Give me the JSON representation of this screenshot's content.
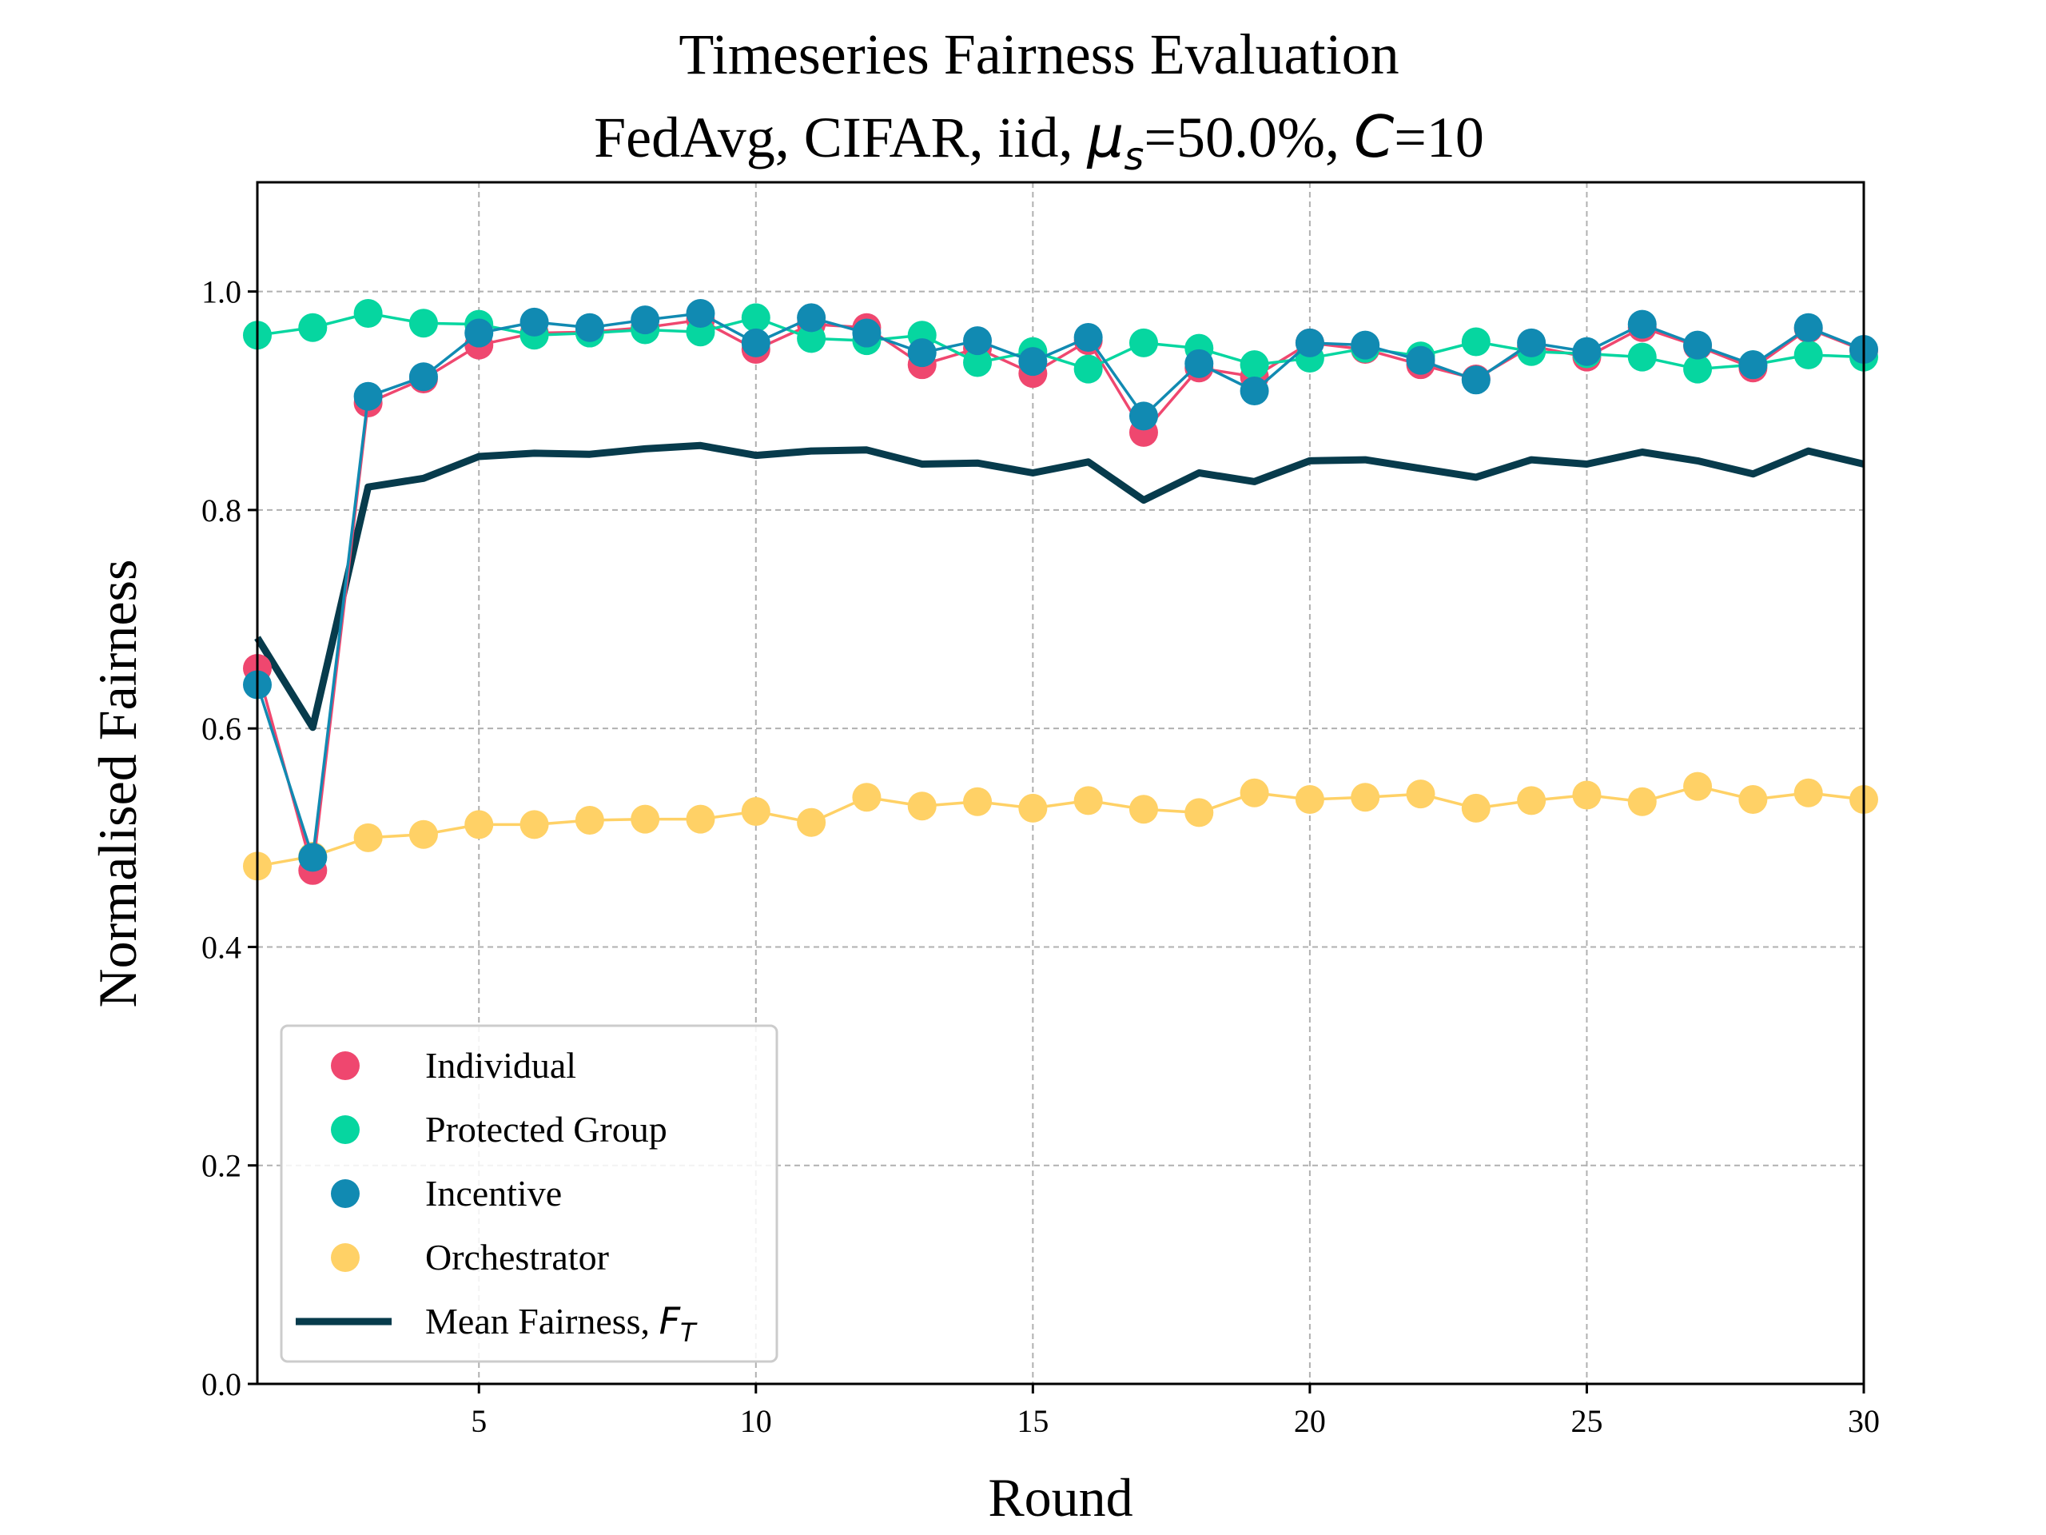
{
  "chart_data": {
    "type": "line",
    "title": "Timeseries Fairness Evaluation",
    "subtitle": "FedAvg, CIFAR, iid, μs=50.0%, C=10",
    "xlabel": "Round",
    "ylabel": "Normalised Fairness",
    "xlim": [
      1,
      30
    ],
    "ylim": [
      0.0,
      1.1
    ],
    "xticks": [
      5,
      10,
      15,
      20,
      25,
      30
    ],
    "yticks": [
      0.0,
      0.2,
      0.4,
      0.6,
      0.8,
      1.0
    ],
    "grid": true,
    "legend_position": "lower-left",
    "x": [
      1,
      2,
      3,
      4,
      5,
      6,
      7,
      8,
      9,
      10,
      11,
      12,
      13,
      14,
      15,
      16,
      17,
      18,
      19,
      20,
      21,
      22,
      23,
      24,
      25,
      26,
      27,
      28,
      29,
      30
    ],
    "series": [
      {
        "name": "Individual",
        "color": "#EF476F",
        "style": "line-markers",
        "values": [
          0.655,
          0.47,
          0.898,
          0.92,
          0.951,
          0.962,
          0.963,
          0.967,
          0.974,
          0.947,
          0.97,
          0.967,
          0.933,
          0.948,
          0.925,
          0.955,
          0.871,
          0.93,
          0.922,
          0.953,
          0.947,
          0.933,
          0.92,
          0.95,
          0.94,
          0.967,
          0.95,
          0.93,
          0.966,
          0.946
        ]
      },
      {
        "name": "Protected Group",
        "color": "#06D6A0",
        "style": "line-markers",
        "values": [
          0.96,
          0.967,
          0.98,
          0.971,
          0.97,
          0.96,
          0.962,
          0.965,
          0.963,
          0.976,
          0.957,
          0.955,
          0.96,
          0.935,
          0.945,
          0.929,
          0.953,
          0.948,
          0.933,
          0.939,
          0.948,
          0.941,
          0.954,
          0.945,
          0.943,
          0.94,
          0.929,
          0.933,
          0.942,
          0.94
        ]
      },
      {
        "name": "Incentive",
        "color": "#118AB2",
        "style": "line-markers",
        "values": [
          0.64,
          0.482,
          0.904,
          0.922,
          0.962,
          0.972,
          0.967,
          0.974,
          0.98,
          0.953,
          0.976,
          0.962,
          0.944,
          0.955,
          0.936,
          0.958,
          0.886,
          0.934,
          0.909,
          0.953,
          0.951,
          0.937,
          0.919,
          0.953,
          0.945,
          0.97,
          0.951,
          0.933,
          0.967,
          0.947
        ]
      },
      {
        "name": "Orchestrator",
        "color": "#FFD166",
        "style": "line-markers",
        "values": [
          0.474,
          0.483,
          0.5,
          0.503,
          0.512,
          0.512,
          0.516,
          0.517,
          0.517,
          0.524,
          0.514,
          0.537,
          0.529,
          0.533,
          0.527,
          0.534,
          0.526,
          0.523,
          0.541,
          0.535,
          0.537,
          0.54,
          0.527,
          0.534,
          0.539,
          0.533,
          0.547,
          0.535,
          0.541,
          0.535
        ]
      },
      {
        "name": "Mean Fairness, F_T",
        "color": "#073B4C",
        "style": "thick-line",
        "values": [
          0.683,
          0.601,
          0.821,
          0.829,
          0.849,
          0.852,
          0.851,
          0.856,
          0.859,
          0.85,
          0.854,
          0.855,
          0.842,
          0.843,
          0.834,
          0.844,
          0.809,
          0.834,
          0.826,
          0.845,
          0.846,
          0.838,
          0.83,
          0.846,
          0.842,
          0.853,
          0.845,
          0.833,
          0.854,
          0.842
        ]
      }
    ]
  }
}
